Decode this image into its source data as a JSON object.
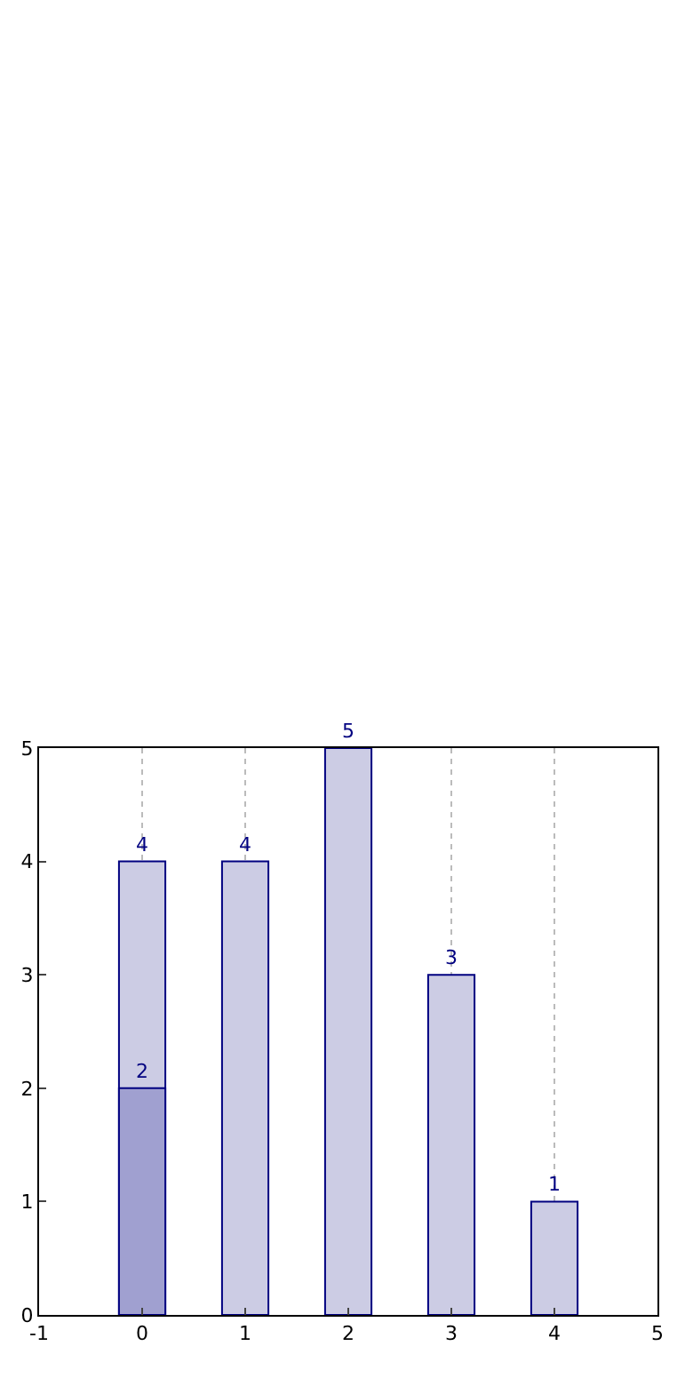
{
  "chart_data": {
    "type": "bar",
    "x": [
      0,
      1,
      2,
      3,
      4
    ],
    "series": [
      {
        "color": "#ccccE4",
        "values": [
          4,
          4,
          5,
          3,
          1
        ]
      },
      {
        "color": "#a0a0d0",
        "values": [
          2,
          null,
          null,
          null,
          null
        ]
      }
    ],
    "xlim": [
      -1,
      5
    ],
    "xticks": [
      -1,
      0,
      1,
      2,
      3,
      4,
      5
    ],
    "ylim": [
      0,
      5
    ],
    "yticks": [
      0,
      1,
      2,
      3,
      4,
      5
    ],
    "grid": "x",
    "data_labels": true
  }
}
